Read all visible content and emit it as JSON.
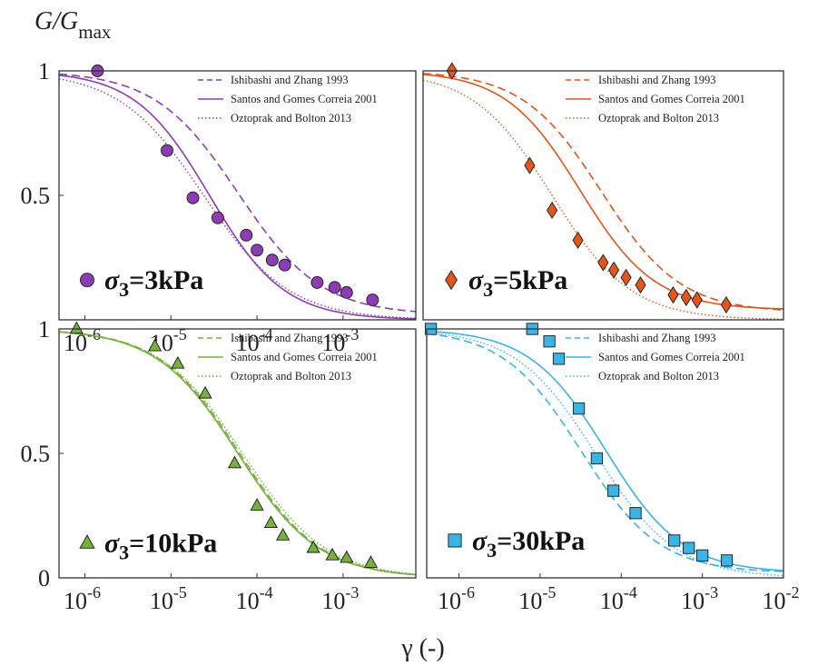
{
  "figure": {
    "ylabel_main": "G/G",
    "ylabel_sub": "max",
    "xlabel": "γ (-)"
  },
  "chart_data": [
    {
      "type": "scatter",
      "panel": "top-left",
      "color": "#8c3db4",
      "marker": "circle",
      "annotation": {
        "symbol": "σ",
        "sub": "3",
        "text": "=3kPa"
      },
      "xscale": "log",
      "xlim": [
        5e-07,
        0.007
      ],
      "ylim": [
        0,
        1
      ],
      "yticks": [
        {
          "v": 1,
          "label": "1"
        },
        {
          "v": 0.5,
          "label": "0.5"
        }
      ],
      "xticks": [
        {
          "v": 1e-06,
          "base": "10",
          "exp": "-6"
        },
        {
          "v": 1e-05,
          "base": "10",
          "exp": "-5"
        },
        {
          "v": 0.0001,
          "base": "10",
          "exp": "-4"
        },
        {
          "v": 0.001,
          "base": "10",
          "exp": "-3"
        }
      ],
      "legend": [
        "Ishibashi and Zhang 1993",
        "Santos and Gomes Correia 2001",
        "Oztoprak and Bolton 2013"
      ],
      "models": [
        {
          "name": "Ishibashi and Zhang 1993",
          "style": "dashed",
          "gref": 6e-05,
          "a": 0.9,
          "floor": 0.02
        },
        {
          "name": "Santos and Gomes Correia 2001",
          "style": "solid",
          "gref": 2.8e-05,
          "a": 1.0,
          "floor": 0.0
        },
        {
          "name": "Oztoprak and Bolton 2013",
          "style": "dotted",
          "gref": 2.4e-05,
          "a": 0.88,
          "floor": 0.0
        }
      ],
      "points": [
        {
          "x": 1.4e-06,
          "y": 1.0
        },
        {
          "x": 9e-06,
          "y": 0.68
        },
        {
          "x": 1.8e-05,
          "y": 0.49
        },
        {
          "x": 3.5e-05,
          "y": 0.41
        },
        {
          "x": 7.5e-05,
          "y": 0.34
        },
        {
          "x": 0.0001,
          "y": 0.28
        },
        {
          "x": 0.00015,
          "y": 0.24
        },
        {
          "x": 0.00021,
          "y": 0.22
        },
        {
          "x": 0.0005,
          "y": 0.15
        },
        {
          "x": 0.0008,
          "y": 0.13
        },
        {
          "x": 0.0011,
          "y": 0.11
        },
        {
          "x": 0.0022,
          "y": 0.08
        }
      ],
      "legend_marker_y": 0.16
    },
    {
      "type": "scatter",
      "panel": "top-right",
      "color": "#e0561c",
      "marker": "diamond",
      "annotation": {
        "symbol": "σ",
        "sub": "3",
        "text": "=5kPa"
      },
      "xscale": "log",
      "xlim": [
        4e-07,
        0.01
      ],
      "ylim": [
        0,
        1
      ],
      "yticks": [],
      "xticks": [],
      "legend": [
        "Ishibashi and Zhang 1993",
        "Santos and Gomes Correia 2001",
        "Oztoprak and Bolton 2013"
      ],
      "models": [
        {
          "name": "Ishibashi and Zhang 1993",
          "style": "dashed",
          "gref": 6e-05,
          "a": 0.9,
          "floor": 0.03
        },
        {
          "name": "Santos and Gomes Correia 2001",
          "style": "solid",
          "gref": 3.3e-05,
          "a": 0.95,
          "floor": 0.04
        },
        {
          "name": "Oztoprak and Bolton 2013",
          "style": "dotted",
          "gref": 1.5e-05,
          "a": 0.9,
          "floor": 0.0
        }
      ],
      "points": [
        {
          "x": 9e-07,
          "y": 1.0
        },
        {
          "x": 8e-06,
          "y": 0.62
        },
        {
          "x": 1.5e-05,
          "y": 0.44
        },
        {
          "x": 3.1e-05,
          "y": 0.32
        },
        {
          "x": 6.3e-05,
          "y": 0.23
        },
        {
          "x": 8.5e-05,
          "y": 0.2
        },
        {
          "x": 0.00012,
          "y": 0.17
        },
        {
          "x": 0.00018,
          "y": 0.14
        },
        {
          "x": 0.00045,
          "y": 0.1
        },
        {
          "x": 0.00065,
          "y": 0.09
        },
        {
          "x": 0.00088,
          "y": 0.08
        },
        {
          "x": 0.002,
          "y": 0.06
        }
      ],
      "legend_marker_y": 0.16
    },
    {
      "type": "scatter",
      "panel": "bottom-left",
      "color": "#77b03f",
      "marker": "triangle",
      "annotation": {
        "symbol": "σ",
        "sub": "3",
        "text": "=10kPa"
      },
      "xscale": "log",
      "xlim": [
        5e-07,
        0.007
      ],
      "ylim": [
        0,
        1
      ],
      "yticks": [
        {
          "v": 1,
          "label": "1"
        },
        {
          "v": 0.5,
          "label": "0.5"
        },
        {
          "v": 0,
          "label": "0"
        }
      ],
      "xticks": [
        {
          "v": 1e-06,
          "base": "10",
          "exp": "-6"
        },
        {
          "v": 1e-05,
          "base": "10",
          "exp": "-5"
        },
        {
          "v": 0.0001,
          "base": "10",
          "exp": "-4"
        },
        {
          "v": 0.001,
          "base": "10",
          "exp": "-3"
        }
      ],
      "legend": [
        "Ishibashi and Zhang 1993",
        "Santos and Gomes Correia 2001",
        "Oztoprak and Bolton 2013"
      ],
      "models": [
        {
          "name": "Ishibashi and Zhang 1993",
          "style": "dashed",
          "gref": 6.3e-05,
          "a": 0.92,
          "floor": 0.0
        },
        {
          "name": "Santos and Gomes Correia 2001",
          "style": "solid",
          "gref": 6e-05,
          "a": 0.92,
          "floor": 0.0
        },
        {
          "name": "Oztoprak and Bolton 2013",
          "style": "dotted",
          "gref": 6.8e-05,
          "a": 0.9,
          "floor": 0.0
        }
      ],
      "points": [
        {
          "x": 8e-07,
          "y": 1.0
        },
        {
          "x": 6.5e-06,
          "y": 0.93
        },
        {
          "x": 1.2e-05,
          "y": 0.86
        },
        {
          "x": 2.5e-05,
          "y": 0.74
        },
        {
          "x": 5.5e-05,
          "y": 0.46
        },
        {
          "x": 0.0001,
          "y": 0.29
        },
        {
          "x": 0.000145,
          "y": 0.22
        },
        {
          "x": 0.0002,
          "y": 0.17
        },
        {
          "x": 0.00045,
          "y": 0.12
        },
        {
          "x": 0.00075,
          "y": 0.09
        },
        {
          "x": 0.0011,
          "y": 0.08
        },
        {
          "x": 0.0021,
          "y": 0.06
        }
      ],
      "legend_marker_y": 0.14
    },
    {
      "type": "scatter",
      "panel": "bottom-right",
      "color": "#3ab4e4",
      "marker": "square",
      "annotation": {
        "symbol": "σ",
        "sub": "3",
        "text": "=30kPa"
      },
      "xscale": "log",
      "xlim": [
        4e-07,
        0.01
      ],
      "ylim": [
        0,
        1
      ],
      "yticks": [],
      "xticks": [
        {
          "v": 1e-06,
          "base": "10",
          "exp": "-6"
        },
        {
          "v": 1e-05,
          "base": "10",
          "exp": "-5"
        },
        {
          "v": 0.0001,
          "base": "10",
          "exp": "-4"
        },
        {
          "v": 0.001,
          "base": "10",
          "exp": "-3"
        },
        {
          "v": 0.01,
          "base": "10",
          "exp": "-2"
        }
      ],
      "legend": [
        "Ishibashi and Zhang 1993",
        "Santos and Gomes Correia 2001",
        "Oztoprak and Bolton 2013"
      ],
      "models": [
        {
          "name": "Ishibashi and Zhang 1993",
          "style": "dashed",
          "gref": 3.2e-05,
          "a": 0.9,
          "floor": 0.02
        },
        {
          "name": "Santos and Gomes Correia 2001",
          "style": "solid",
          "gref": 6.5e-05,
          "a": 0.92,
          "floor": 0.02
        },
        {
          "name": "Oztoprak and Bolton 2013",
          "style": "dotted",
          "gref": 4.8e-05,
          "a": 0.88,
          "floor": 0.0
        }
      ],
      "points": [
        {
          "x": 4.5e-07,
          "y": 1.0
        },
        {
          "x": 8e-06,
          "y": 1.0
        },
        {
          "x": 1.3e-05,
          "y": 0.95
        },
        {
          "x": 1.7e-05,
          "y": 0.88
        },
        {
          "x": 3e-05,
          "y": 0.68
        },
        {
          "x": 5e-05,
          "y": 0.48
        },
        {
          "x": 8e-05,
          "y": 0.35
        },
        {
          "x": 0.00015,
          "y": 0.26
        },
        {
          "x": 0.00045,
          "y": 0.15
        },
        {
          "x": 0.00068,
          "y": 0.12
        },
        {
          "x": 0.001,
          "y": 0.09
        },
        {
          "x": 0.002,
          "y": 0.07
        }
      ],
      "legend_marker_y": 0.15
    }
  ]
}
